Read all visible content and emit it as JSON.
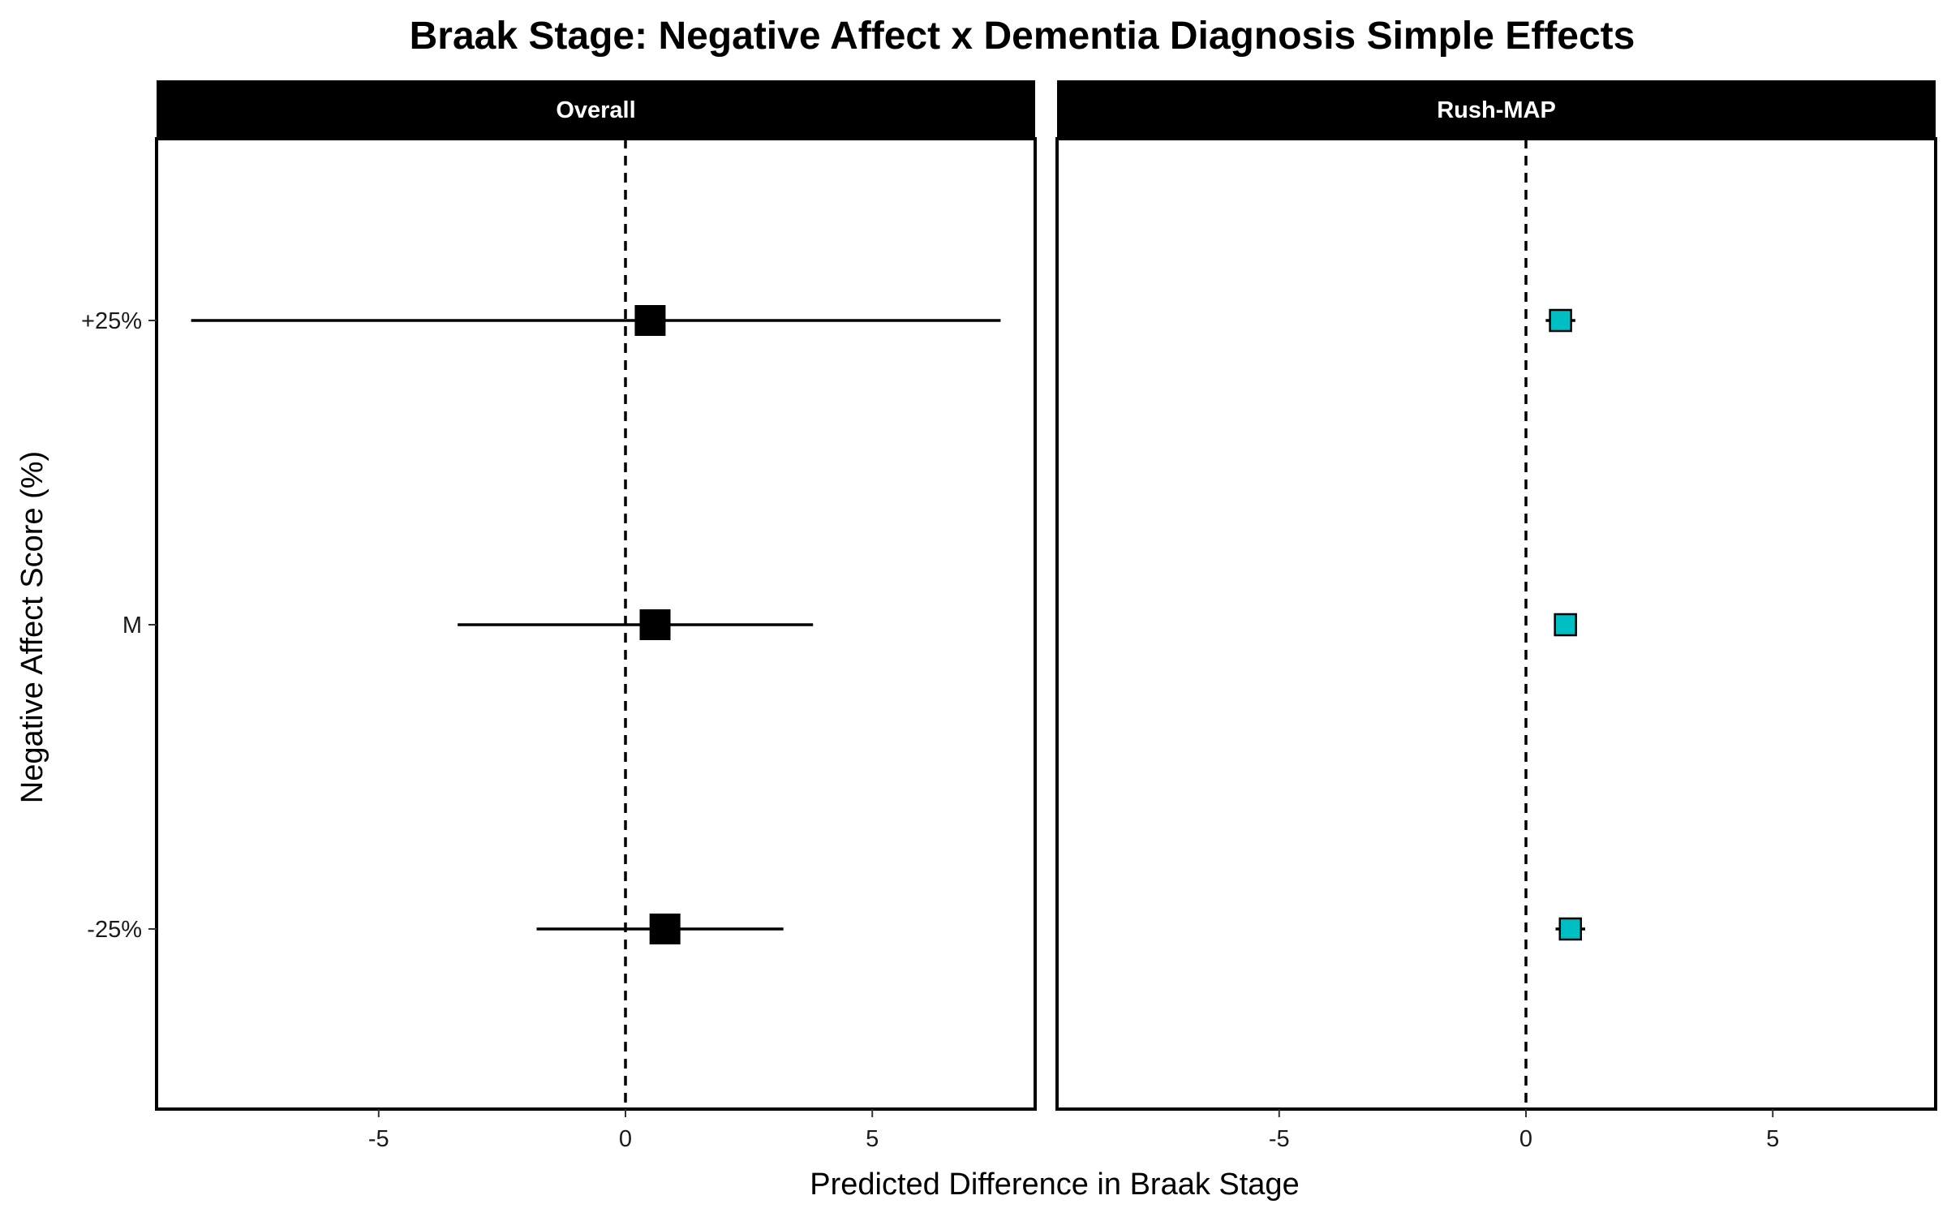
{
  "chart_data": {
    "type": "scatter",
    "subtype": "forest-plot-faceted",
    "title": "Braak Stage: Negative Affect x Dementia Diagnosis Simple Effects",
    "xlabel": "Predicted Difference in Braak Stage",
    "ylabel": "Negative Affect Score (%)",
    "xlim": [
      -9.5,
      8.3
    ],
    "x_ticks": [
      -5,
      0,
      5
    ],
    "x_tick_labels": [
      "-5",
      "0",
      "5"
    ],
    "y_categories": [
      "+25%",
      "M",
      "-25%"
    ],
    "reference_line": 0,
    "grid": false,
    "panels": [
      {
        "name": "Overall",
        "marker_color": "#000000",
        "points": [
          {
            "y": "+25%",
            "estimate": 0.5,
            "lower": -8.8,
            "upper": 7.6
          },
          {
            "y": "M",
            "estimate": 0.6,
            "lower": -3.4,
            "upper": 3.8
          },
          {
            "y": "-25%",
            "estimate": 0.8,
            "lower": -1.8,
            "upper": 3.2
          }
        ]
      },
      {
        "name": "Rush-MAP",
        "marker_color": "#00BFC4",
        "points": [
          {
            "y": "+25%",
            "estimate": 0.7,
            "lower": 0.4,
            "upper": 1.0
          },
          {
            "y": "M",
            "estimate": 0.8,
            "lower": 0.7,
            "upper": 0.9
          },
          {
            "y": "-25%",
            "estimate": 0.9,
            "lower": 0.6,
            "upper": 1.2
          }
        ]
      }
    ]
  }
}
